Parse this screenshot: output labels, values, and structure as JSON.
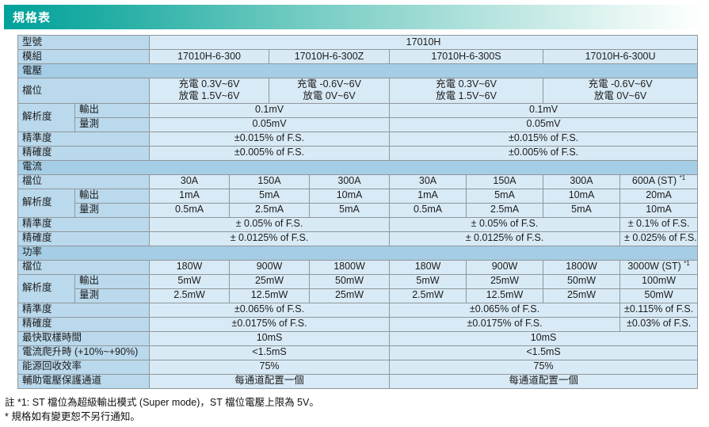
{
  "title": "規格表",
  "colors": {
    "title_gradient_start": "#00a29a",
    "title_gradient_end": "#ffffff",
    "section_row_bg": "#a5cde5",
    "label_cell_bg": "#bad9ec",
    "data_cell_bg": "#d8eaf6",
    "border": "#8f979c"
  },
  "table": {
    "rows": [
      {
        "cells": [
          {
            "t": "型號",
            "span": 2,
            "cls": "lab glabel"
          },
          {
            "t": "17010H",
            "span": 10,
            "cls": "dat gmod"
          }
        ]
      },
      {
        "cells": [
          {
            "t": "模組",
            "span": 2,
            "cls": "lab glabel"
          },
          {
            "t": "17010H-6-300",
            "span": 3,
            "cls": "dat"
          },
          {
            "t": "17010H-6-300Z",
            "span": 3,
            "cls": "dat"
          },
          {
            "t": "17010H-6-300S",
            "span": 2,
            "cls": "dat"
          },
          {
            "t": "17010H-6-300U",
            "span": 2,
            "cls": "dat"
          }
        ]
      },
      {
        "cells": [
          {
            "t": "電壓",
            "span": 12,
            "cls": "sec"
          }
        ]
      },
      {
        "h": 31,
        "cells": [
          {
            "t": "檔位",
            "span": 2,
            "cls": "lab glabel"
          },
          {
            "lines": [
              "充電 0.3V~6V",
              "放電 1.5V~6V"
            ],
            "span": 3,
            "cls": "dat"
          },
          {
            "lines": [
              "充電 -0.6V~6V",
              "放電 0V~6V"
            ],
            "span": 3,
            "cls": "dat"
          },
          {
            "lines": [
              "充電 0.3V~6V",
              "放電 1.5V~6V"
            ],
            "span": 2,
            "cls": "dat"
          },
          {
            "lines": [
              "充電 -0.6V~6V",
              "放電 0V~6V"
            ],
            "span": 2,
            "cls": "dat"
          }
        ]
      },
      {
        "cells": [
          {
            "t": "解析度",
            "span": 1,
            "rowspan": 2,
            "cls": "lab"
          },
          {
            "t": "輸出",
            "span": 1,
            "cls": "lab"
          },
          {
            "t": "0.1mV",
            "span": 6,
            "cls": "dat g2"
          },
          {
            "t": "0.1mV",
            "span": 4,
            "cls": "dat g2"
          }
        ]
      },
      {
        "cells": [
          {
            "t": "量測",
            "span": 1,
            "cls": "lab"
          },
          {
            "t": "0.05mV",
            "span": 6,
            "cls": "dat g2"
          },
          {
            "t": "0.05mV",
            "span": 4,
            "cls": "dat g2"
          }
        ]
      },
      {
        "cells": [
          {
            "t": "精準度",
            "span": 2,
            "cls": "lab glabel"
          },
          {
            "t": "±0.015% of F.S.",
            "span": 6,
            "cls": "dat g2"
          },
          {
            "t": "±0.015% of F.S.",
            "span": 4,
            "cls": "dat g2"
          }
        ]
      },
      {
        "cells": [
          {
            "t": "精確度",
            "span": 2,
            "cls": "lab glabel"
          },
          {
            "t": "±0.005% of F.S.",
            "span": 6,
            "cls": "dat g2"
          },
          {
            "t": "±0.005% of F.S.",
            "span": 4,
            "cls": "dat g2"
          }
        ]
      },
      {
        "cells": [
          {
            "t": "電流",
            "span": 12,
            "cls": "sec"
          }
        ]
      },
      {
        "cells": [
          {
            "t": "檔位",
            "span": 2,
            "cls": "lab glabel"
          },
          {
            "t": "30A",
            "span": 2
          },
          {
            "t": "150A",
            "span": 2
          },
          {
            "t": "300A",
            "span": 2
          },
          {
            "t": "30A"
          },
          {
            "t": "150A"
          },
          {
            "t": "300A"
          },
          {
            "t": "600A (ST) ",
            "sup": "*1"
          }
        ]
      },
      {
        "cells": [
          {
            "t": "解析度",
            "rowspan": 2,
            "cls": "lab"
          },
          {
            "t": "輸出",
            "cls": "lab"
          },
          {
            "t": "1mA",
            "span": 2
          },
          {
            "t": "5mA",
            "span": 2
          },
          {
            "t": "10mA",
            "span": 2
          },
          {
            "t": "1mA"
          },
          {
            "t": "5mA"
          },
          {
            "t": "10mA"
          },
          {
            "t": "20mA"
          }
        ]
      },
      {
        "cells": [
          {
            "t": "量測",
            "cls": "lab"
          },
          {
            "t": "0.5mA",
            "span": 2
          },
          {
            "t": "2.5mA",
            "span": 2
          },
          {
            "t": "5mA",
            "span": 2
          },
          {
            "t": "0.5mA"
          },
          {
            "t": "2.5mA"
          },
          {
            "t": "5mA"
          },
          {
            "t": "10mA"
          }
        ]
      },
      {
        "cells": [
          {
            "t": "精準度",
            "span": 2,
            "cls": "lab glabel"
          },
          {
            "t": "± 0.05% of F.S.",
            "span": 6,
            "cls": "dat g3"
          },
          {
            "t": "± 0.05% of F.S.",
            "span": 3,
            "cls": "dat g3"
          },
          {
            "t": "± 0.1% of F.S."
          }
        ]
      },
      {
        "cells": [
          {
            "t": "精確度",
            "span": 2,
            "cls": "lab glabel"
          },
          {
            "t": "± 0.0125% of F.S.",
            "span": 6,
            "cls": "dat g3"
          },
          {
            "t": "± 0.0125% of F.S.",
            "span": 3,
            "cls": "dat g3"
          },
          {
            "t": "± 0.025% of F.S."
          }
        ]
      },
      {
        "cells": [
          {
            "t": "功率",
            "span": 12,
            "cls": "sec"
          }
        ]
      },
      {
        "cells": [
          {
            "t": "檔位",
            "span": 2,
            "cls": "lab glabel"
          },
          {
            "t": "180W",
            "span": 2
          },
          {
            "t": "900W",
            "span": 2
          },
          {
            "t": "1800W",
            "span": 2
          },
          {
            "t": "180W"
          },
          {
            "t": "900W"
          },
          {
            "t": "1800W"
          },
          {
            "t": "3000W (ST) ",
            "sup": "*1"
          }
        ]
      },
      {
        "cells": [
          {
            "t": "解析度",
            "rowspan": 2,
            "cls": "lab"
          },
          {
            "t": "輸出",
            "cls": "lab"
          },
          {
            "t": "5mW",
            "span": 2
          },
          {
            "t": "25mW",
            "span": 2
          },
          {
            "t": "50mW",
            "span": 2
          },
          {
            "t": "5mW"
          },
          {
            "t": "25mW"
          },
          {
            "t": "50mW"
          },
          {
            "t": "100mW"
          }
        ]
      },
      {
        "cells": [
          {
            "t": "量測",
            "cls": "lab"
          },
          {
            "t": "2.5mW",
            "span": 2
          },
          {
            "t": "12.5mW",
            "span": 2
          },
          {
            "t": "25mW",
            "span": 2
          },
          {
            "t": "2.5mW"
          },
          {
            "t": "12.5mW"
          },
          {
            "t": "25mW"
          },
          {
            "t": "50mW"
          }
        ]
      },
      {
        "cells": [
          {
            "t": "精準度",
            "span": 2,
            "cls": "lab glabel"
          },
          {
            "t": "±0.065% of F.S.",
            "span": 6,
            "cls": "dat g3"
          },
          {
            "t": "±0.065% of F.S.",
            "span": 3,
            "cls": "dat g3"
          },
          {
            "t": "±0.115% of F.S."
          }
        ]
      },
      {
        "cells": [
          {
            "t": "精確度",
            "span": 2,
            "cls": "lab glabel"
          },
          {
            "t": "±0.0175% of F.S.",
            "span": 6,
            "cls": "dat g3"
          },
          {
            "t": "±0.0175% of F.S.",
            "span": 3,
            "cls": "dat g3"
          },
          {
            "t": "±0.03% of F.S."
          }
        ]
      },
      {
        "cells": [
          {
            "t": "最快取樣時間",
            "span": 2,
            "cls": "lab glabel"
          },
          {
            "t": "10mS",
            "span": 6,
            "cls": "dat g3"
          },
          {
            "t": "10mS",
            "span": 4,
            "cls": "dat g4"
          }
        ]
      },
      {
        "cells": [
          {
            "t": "電流爬升時 (+10%~+90%)",
            "span": 2,
            "cls": "lab glabel"
          },
          {
            "t": "<1.5mS",
            "span": 6,
            "cls": "dat g3"
          },
          {
            "t": "<1.5mS",
            "span": 4,
            "cls": "dat g4"
          }
        ]
      },
      {
        "cells": [
          {
            "t": "能源回收效率",
            "span": 2,
            "cls": "lab glabel"
          },
          {
            "t": "75%",
            "span": 6,
            "cls": "dat g3"
          },
          {
            "t": "75%",
            "span": 4,
            "cls": "dat g4"
          }
        ]
      },
      {
        "cells": [
          {
            "t": "輔助電壓保護通道",
            "span": 2,
            "cls": "lab glabel"
          },
          {
            "t": "每通道配置一個",
            "span": 6,
            "cls": "dat g3"
          },
          {
            "t": "每通道配置一個",
            "span": 4,
            "cls": "dat g4"
          }
        ]
      }
    ]
  },
  "notes": [
    "註 *1: ST 檔位為超級輸出模式 (Super mode)，ST 檔位電壓上限為 5V。",
    "* 規格如有變更恕不另行通知。"
  ]
}
